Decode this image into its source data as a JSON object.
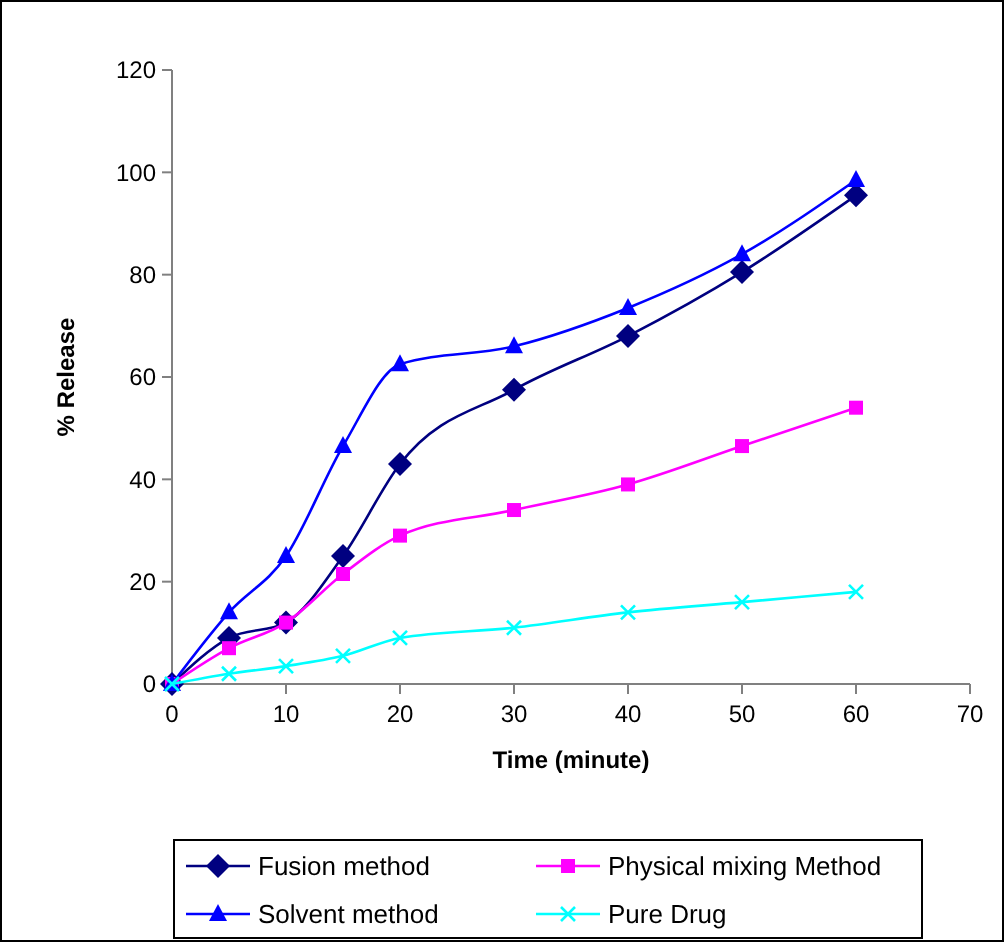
{
  "chart_data": {
    "type": "line",
    "xlabel": "Time (minute)",
    "ylabel": "% Release",
    "x": [
      0,
      5,
      10,
      15,
      20,
      30,
      40,
      50,
      60
    ],
    "xlim": [
      0,
      70
    ],
    "xticks": [
      0,
      10,
      20,
      30,
      40,
      50,
      60,
      70
    ],
    "ylim": [
      0,
      120
    ],
    "yticks": [
      0,
      20,
      40,
      60,
      80,
      100,
      120
    ],
    "grid": false,
    "legend": "bottom",
    "series": [
      {
        "name": "Fusion method",
        "color": "#000080",
        "marker": "diamond",
        "values": [
          0,
          9,
          12,
          25,
          43,
          57.5,
          68,
          80.5,
          95.5
        ]
      },
      {
        "name": "Physical mixing Method",
        "color": "#ff00ff",
        "marker": "square",
        "values": [
          0,
          7,
          12,
          21.5,
          29,
          34,
          39,
          46.5,
          54
        ]
      },
      {
        "name": "Solvent method",
        "color": "#0000ff",
        "marker": "triangle",
        "values": [
          0,
          14,
          25,
          46.5,
          62.5,
          66,
          73.5,
          84,
          98.5
        ]
      },
      {
        "name": "Pure Drug",
        "color": "#00ffff",
        "marker": "cross",
        "values": [
          0,
          2,
          3.5,
          5.5,
          9,
          11,
          14,
          16,
          18
        ]
      }
    ]
  }
}
